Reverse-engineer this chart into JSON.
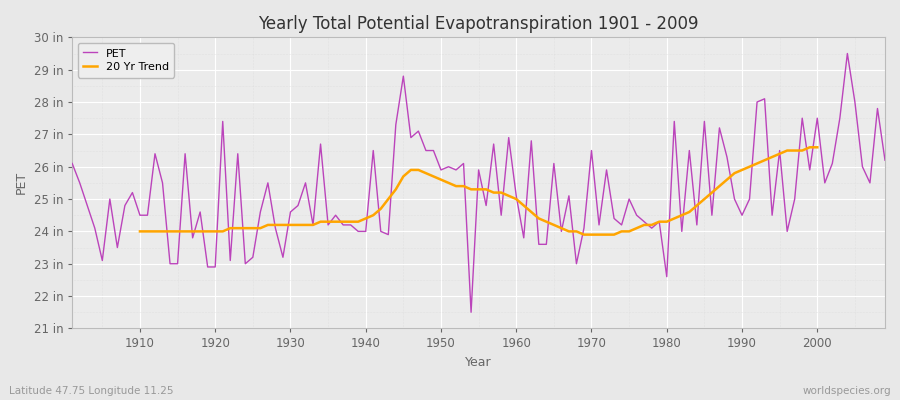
{
  "title": "Yearly Total Potential Evapotranspiration 1901 - 2009",
  "ylabel": "PET",
  "xlabel": "Year",
  "footnote_left": "Latitude 47.75 Longitude 11.25",
  "footnote_right": "worldspecies.org",
  "pet_color": "#BB44BB",
  "trend_color": "#FFA500",
  "fig_bg_color": "#E8E8E8",
  "plot_bg_color": "#EBEBEB",
  "grid_color": "#FFFFFF",
  "ylim": [
    21,
    30
  ],
  "ytick_labels": [
    "21 in",
    "22 in",
    "23 in",
    "24 in",
    "25 in",
    "26 in",
    "27 in",
    "28 in",
    "29 in",
    "30 in"
  ],
  "ytick_values": [
    21,
    22,
    23,
    24,
    25,
    26,
    27,
    28,
    29,
    30
  ],
  "years": [
    1901,
    1902,
    1903,
    1904,
    1905,
    1906,
    1907,
    1908,
    1909,
    1910,
    1911,
    1912,
    1913,
    1914,
    1915,
    1916,
    1917,
    1918,
    1919,
    1920,
    1921,
    1922,
    1923,
    1924,
    1925,
    1926,
    1927,
    1928,
    1929,
    1930,
    1931,
    1932,
    1933,
    1934,
    1935,
    1936,
    1937,
    1938,
    1939,
    1940,
    1941,
    1942,
    1943,
    1944,
    1945,
    1946,
    1947,
    1948,
    1949,
    1950,
    1951,
    1952,
    1953,
    1954,
    1955,
    1956,
    1957,
    1958,
    1959,
    1960,
    1961,
    1962,
    1963,
    1964,
    1965,
    1966,
    1967,
    1968,
    1969,
    1970,
    1971,
    1972,
    1973,
    1974,
    1975,
    1976,
    1977,
    1978,
    1979,
    1980,
    1981,
    1982,
    1983,
    1984,
    1985,
    1986,
    1987,
    1988,
    1989,
    1990,
    1991,
    1992,
    1993,
    1994,
    1995,
    1996,
    1997,
    1998,
    1999,
    2000,
    2001,
    2002,
    2003,
    2004,
    2005,
    2006,
    2007,
    2008,
    2009
  ],
  "pet_values": [
    26.1,
    25.5,
    24.8,
    24.1,
    23.1,
    25.0,
    23.5,
    24.8,
    25.2,
    24.5,
    24.5,
    26.4,
    25.5,
    23.0,
    23.0,
    26.4,
    23.8,
    24.6,
    22.9,
    22.9,
    27.4,
    23.1,
    26.4,
    23.0,
    23.2,
    24.6,
    25.5,
    24.1,
    23.2,
    24.6,
    24.8,
    25.5,
    24.2,
    26.7,
    24.2,
    24.5,
    24.2,
    24.2,
    24.0,
    24.0,
    26.5,
    24.0,
    23.9,
    27.3,
    28.8,
    26.9,
    27.1,
    26.5,
    26.5,
    25.9,
    26.0,
    25.9,
    26.1,
    21.5,
    25.9,
    24.8,
    26.7,
    24.5,
    26.9,
    25.1,
    23.8,
    26.8,
    23.6,
    23.6,
    26.1,
    24.0,
    25.1,
    23.0,
    24.1,
    26.5,
    24.2,
    25.9,
    24.4,
    24.2,
    25.0,
    24.5,
    24.3,
    24.1,
    24.3,
    22.6,
    27.4,
    24.0,
    26.5,
    24.2,
    27.4,
    24.5,
    27.2,
    26.3,
    25.0,
    24.5,
    25.0,
    28.0,
    28.1,
    24.5,
    26.5,
    24.0,
    25.0,
    27.5,
    25.9,
    27.5,
    25.5,
    26.1,
    27.5,
    29.5,
    28.0,
    26.0,
    25.5,
    27.8,
    26.2
  ],
  "trend_years": [
    1910,
    1911,
    1912,
    1913,
    1914,
    1915,
    1916,
    1917,
    1918,
    1919,
    1920,
    1921,
    1922,
    1923,
    1924,
    1925,
    1926,
    1927,
    1928,
    1929,
    1930,
    1931,
    1932,
    1933,
    1934,
    1935,
    1936,
    1937,
    1938,
    1939,
    1940,
    1941,
    1942,
    1943,
    1944,
    1945,
    1946,
    1947,
    1948,
    1949,
    1950,
    1951,
    1952,
    1953,
    1954,
    1955,
    1956,
    1957,
    1958,
    1959,
    1960,
    1961,
    1962,
    1963,
    1964,
    1965,
    1966,
    1967,
    1968,
    1969,
    1970,
    1971,
    1972,
    1973,
    1974,
    1975,
    1976,
    1977,
    1978,
    1979,
    1980,
    1981,
    1982,
    1983,
    1984,
    1985,
    1986,
    1987,
    1988,
    1989,
    1990,
    1991,
    1992,
    1993,
    1994,
    1995,
    1996,
    1997,
    1998,
    1999,
    2000
  ],
  "trend_values": [
    24.0,
    24.0,
    24.0,
    24.0,
    24.0,
    24.0,
    24.0,
    24.0,
    24.0,
    24.0,
    24.0,
    24.0,
    24.1,
    24.1,
    24.1,
    24.1,
    24.1,
    24.2,
    24.2,
    24.2,
    24.2,
    24.2,
    24.2,
    24.2,
    24.3,
    24.3,
    24.3,
    24.3,
    24.3,
    24.3,
    24.4,
    24.5,
    24.7,
    25.0,
    25.3,
    25.7,
    25.9,
    25.9,
    25.8,
    25.7,
    25.6,
    25.5,
    25.4,
    25.4,
    25.3,
    25.3,
    25.3,
    25.2,
    25.2,
    25.1,
    25.0,
    24.8,
    24.6,
    24.4,
    24.3,
    24.2,
    24.1,
    24.0,
    24.0,
    23.9,
    23.9,
    23.9,
    23.9,
    23.9,
    24.0,
    24.0,
    24.1,
    24.2,
    24.2,
    24.3,
    24.3,
    24.4,
    24.5,
    24.6,
    24.8,
    25.0,
    25.2,
    25.4,
    25.6,
    25.8,
    25.9,
    26.0,
    26.1,
    26.2,
    26.3,
    26.4,
    26.5,
    26.5,
    26.5,
    26.6,
    26.6
  ]
}
